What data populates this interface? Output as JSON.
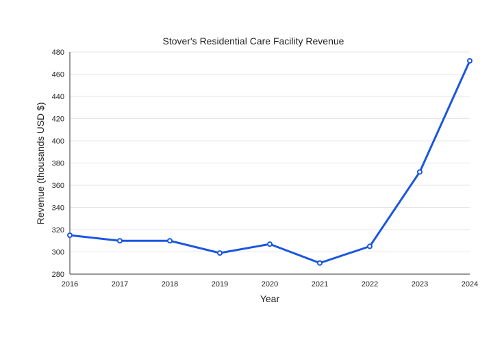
{
  "chart_data": {
    "type": "line",
    "title": "Stover's Residential Care Facility Revenue",
    "xlabel": "Year",
    "ylabel": "Revenue (thousands USD $)",
    "x": [
      "2016",
      "2017",
      "2018",
      "2019",
      "2020",
      "2021",
      "2022",
      "2023",
      "2024"
    ],
    "series": [
      {
        "values": [
          315,
          310,
          310,
          299,
          307,
          290,
          305,
          372,
          472
        ]
      }
    ],
    "ylim": [
      280,
      480
    ],
    "yticks": [
      "280",
      "300",
      "320",
      "340",
      "360",
      "380",
      "400",
      "420",
      "440",
      "460",
      "480"
    ],
    "grid": true,
    "legend": "none",
    "line_color": "#1a56e0"
  }
}
